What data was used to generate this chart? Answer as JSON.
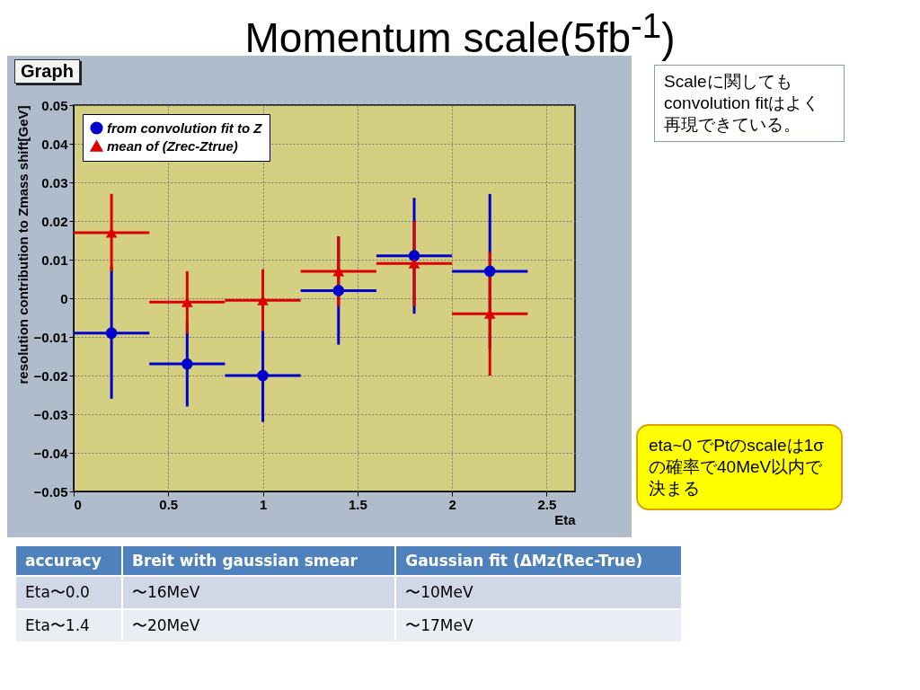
{
  "chart_data": {
    "type": "scatter",
    "title": "Momentum scale(5fb$^{-1}$)",
    "subtitle": "Graph",
    "xlabel": "Eta",
    "ylabel": "resolution contribution to Zmass shift[GeV]",
    "x": [
      0.2,
      0.6,
      1.0,
      1.4,
      1.8,
      2.2
    ],
    "series": [
      {
        "name": "from convolution fit to Z",
        "color": "#0000cc",
        "marker": "circle",
        "values": [
          -0.009,
          -0.017,
          -0.02,
          0.002,
          0.011,
          0.007
        ],
        "errors": [
          0.017,
          0.011,
          0.012,
          0.014,
          0.015,
          0.02
        ],
        "xerrors": [
          0.2,
          0.2,
          0.2,
          0.2,
          0.2,
          0.2
        ]
      },
      {
        "name": "mean of (Zrec-Ztrue)",
        "color": "#dd0000",
        "marker": "triangle",
        "values": [
          0.017,
          -0.001,
          -0.0005,
          0.007,
          0.009,
          -0.004
        ],
        "errors": [
          0.01,
          0.008,
          0.008,
          0.009,
          0.011,
          0.016
        ],
        "xerrors": [
          0.2,
          0.2,
          0.2,
          0.2,
          0.2,
          0.2
        ]
      }
    ],
    "xlim": [
      0,
      2.65
    ],
    "xticks": [
      0,
      0.5,
      1,
      1.5,
      2,
      2.5
    ],
    "ylim": [
      -0.05,
      0.05
    ],
    "yticks": [
      -0.05,
      -0.04,
      -0.03,
      -0.02,
      -0.01,
      0,
      0.01,
      0.02,
      0.03,
      0.04,
      0.05
    ],
    "grid": true,
    "legend": "top left",
    "annotations": [
      "Scaleに関してもconvolution fitはよく再現できている。",
      "eta~0 でPtのscaleは1σの確率で40MeV以内で決まる",
      "accuracy",
      "Breit with gaussian smear",
      "Gaussian fit (ΔMz(Rec-True)",
      "Eta〜0.0",
      "〜16MeV",
      "〜10MeV",
      "Eta〜1.4",
      "〜20MeV",
      "〜17MeV"
    ]
  }
}
